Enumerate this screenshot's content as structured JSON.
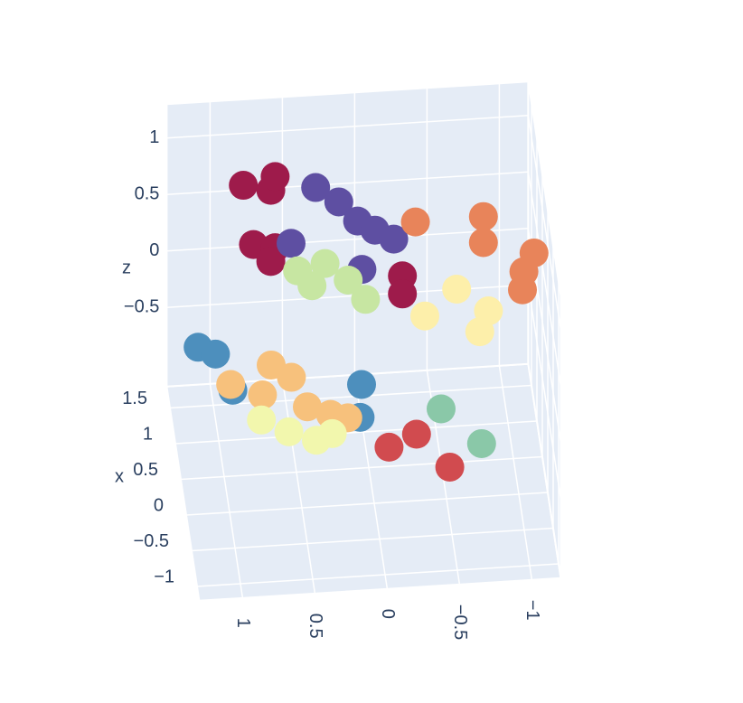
{
  "chart_data": {
    "type": "scatter3d",
    "x_label": "x",
    "z_label": "z",
    "xlim": [
      -1.2,
      1.8
    ],
    "ylim": [
      -1.2,
      1.3
    ],
    "zlim": [
      -1.2,
      1.3
    ],
    "xticks": [
      {
        "value": -1,
        "label": "−1"
      },
      {
        "value": -0.5,
        "label": "−0.5"
      },
      0,
      0.5,
      1,
      1.5
    ],
    "yticks": [
      {
        "value": -1,
        "label": "−1"
      },
      {
        "value": -0.5,
        "label": "−0.5"
      },
      0,
      0.5,
      1
    ],
    "zticks": [
      {
        "value": -0.5,
        "label": "−0.5"
      },
      0,
      0.5,
      1
    ],
    "grid": true,
    "series": [
      {
        "color": "#9e1b4b",
        "x": [
          1,
          1,
          1,
          1,
          1,
          1,
          1,
          1
        ],
        "y": [
          0.83,
          0.64,
          0.61,
          0.76,
          0.61,
          0.64,
          -0.27,
          -0.27
        ],
        "z": [
          1.05,
          0.99,
          1.11,
          0.52,
          0.48,
          0.36,
          0.16,
          0.0
        ]
      },
      {
        "color": "#5e4fa2",
        "x": [
          1,
          1,
          1,
          1,
          1,
          1,
          1
        ],
        "y": [
          0.33,
          0.17,
          0.04,
          -0.08,
          -0.21,
          0.01,
          0.5
        ],
        "z": [
          0.99,
          0.85,
          0.67,
          0.58,
          0.49,
          0.24,
          0.51
        ]
      },
      {
        "color": "#c7e6a2",
        "x": [
          0.8,
          0.8,
          0.8,
          0.8,
          0.8
        ],
        "y": [
          0.47,
          0.28,
          0.12,
          0.0,
          0.37
        ],
        "z": [
          0.39,
          0.44,
          0.28,
          0.1,
          0.25
        ]
      },
      {
        "color": "#e8845a",
        "x": [
          1,
          1,
          1,
          1,
          1,
          1
        ],
        "y": [
          -0.36,
          -0.83,
          -0.83,
          -1.18,
          -1.11,
          -1.1
        ],
        "z": [
          0.63,
          0.64,
          0.41,
          0.29,
          0.13,
          -0.03
        ]
      },
      {
        "color": "#fdefaa",
        "x": [
          0.8,
          0.8,
          0.8,
          0.8
        ],
        "y": [
          -0.41,
          -0.63,
          -0.85,
          -0.79
        ],
        "z": [
          -0.08,
          0.14,
          -0.07,
          -0.25
        ]
      },
      {
        "color": "#4d8fbd",
        "x": [
          0.5,
          0.5,
          0.5,
          0.5,
          0.5
        ],
        "y": [
          1.18,
          1.06,
          0.94,
          0.05,
          0.06
        ],
        "z": [
          -0.04,
          -0.11,
          -0.44,
          -0.46,
          -0.75
        ]
      },
      {
        "color": "#f7c17c",
        "x": [
          0.3,
          0.3,
          0.3,
          0.3,
          0.3,
          0.3,
          0.3
        ],
        "y": [
          0.97,
          0.69,
          0.55,
          0.75,
          0.44,
          0.28,
          0.16
        ],
        "z": [
          -0.26,
          -0.11,
          -0.23,
          -0.37,
          -0.5,
          -0.58,
          -0.62
        ]
      },
      {
        "color": "#f2f7ad",
        "x": [
          0,
          0,
          0,
          0
        ],
        "y": [
          0.78,
          0.59,
          0.4,
          0.29
        ],
        "z": [
          -0.4,
          -0.52,
          -0.61,
          -0.56
        ]
      },
      {
        "color": "#d14b4f",
        "x": [
          -0.3,
          -0.3,
          -0.3
        ],
        "y": [
          -0.08,
          -0.27,
          -0.5
        ],
        "z": [
          -0.52,
          -0.42,
          -0.73
        ]
      },
      {
        "color": "#8ac8a8",
        "x": [
          0.5,
          0.5
        ],
        "y": [
          -0.5,
          -0.78
        ],
        "z": [
          -0.72,
          -1.05
        ]
      }
    ]
  }
}
